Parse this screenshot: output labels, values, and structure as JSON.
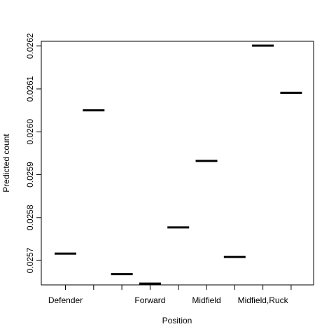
{
  "chart_data": {
    "type": "scatter",
    "xlabel": "Position",
    "ylabel": "Predicted count",
    "categories": [
      "Defender",
      "",
      "",
      "Forward",
      "",
      "Midfield",
      "",
      "Midfield,Ruck",
      ""
    ],
    "values": [
      0.025716,
      0.02605,
      0.025668,
      0.025646,
      0.025777,
      0.025932,
      0.025708,
      0.026201,
      0.026091
    ],
    "ylim": [
      0.025643,
      0.026211
    ],
    "yticks": [
      0.0257,
      0.0258,
      0.0259,
      0.026,
      0.0261,
      0.0262
    ],
    "ytick_labels": [
      "0.0257",
      "0.0258",
      "0.0259",
      "0.0260",
      "0.0261",
      "0.0262"
    ],
    "marker": "horizontal-segment",
    "grid": false,
    "legend": "none"
  }
}
